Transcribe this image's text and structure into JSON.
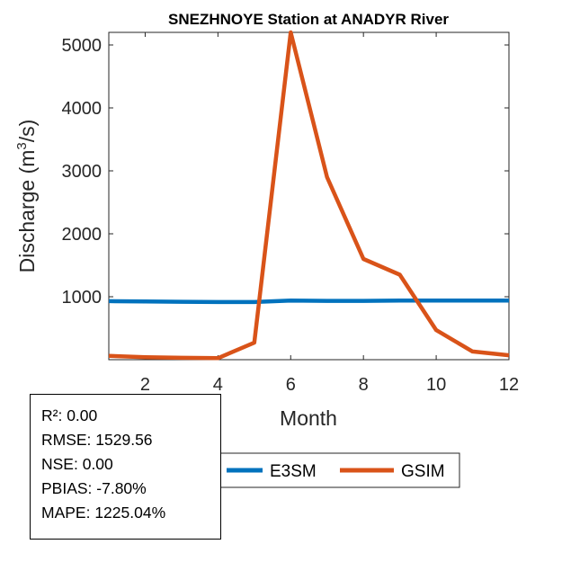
{
  "chart_data": {
    "type": "line",
    "title": "SNEZHNOYE  Station at  ANADYR  River",
    "xlabel": "Month",
    "ylabel": "Discharge (m",
    "ylabel_sup": "3",
    "ylabel_suffix": "/s)",
    "xlim": [
      1,
      12
    ],
    "ylim": [
      0,
      5200
    ],
    "xticks": [
      2,
      4,
      6,
      8,
      10,
      12
    ],
    "yticks": [
      1000,
      2000,
      3000,
      4000,
      5000
    ],
    "grid": false,
    "legend_position": "bottom",
    "x": [
      1,
      2,
      3,
      4,
      5,
      6,
      7,
      8,
      9,
      10,
      11,
      12
    ],
    "series": [
      {
        "name": "E3SM",
        "color": "#0072BD",
        "values": [
          930,
          925,
          920,
          915,
          915,
          940,
          935,
          935,
          940,
          940,
          940,
          940
        ]
      },
      {
        "name": "GSIM",
        "color": "#D95319",
        "values": [
          60,
          40,
          30,
          25,
          270,
          5200,
          2900,
          1600,
          1350,
          470,
          130,
          70
        ]
      }
    ]
  },
  "stats": {
    "r2": "R²: 0.00",
    "rmse": "RMSE: 1529.56",
    "nse": "NSE: 0.00",
    "pbias": "PBIAS: -7.80%",
    "mape": "MAPE: 1225.04%"
  }
}
